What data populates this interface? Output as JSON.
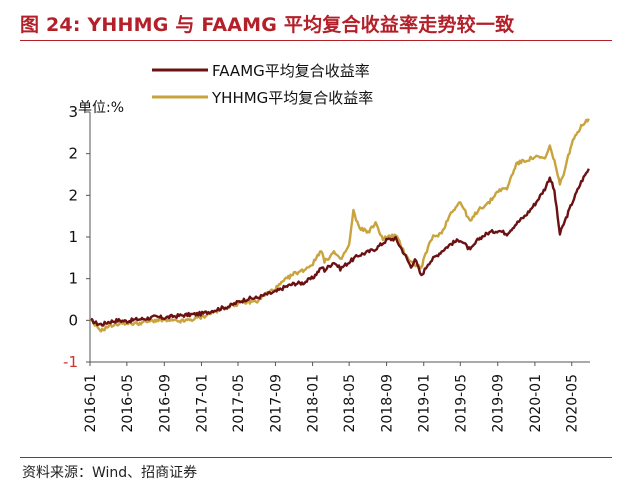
{
  "figure": {
    "title": "图 24: YHHMG 与 FAAMG 平均复合收益率走势较一致",
    "source": "资料来源：Wind、招商证券",
    "unit": "单位:%"
  },
  "colors": {
    "title": "#b4202a",
    "faamg": "#6b1114",
    "yhhmg": "#c9a43e",
    "negative_tick": "#d0312d"
  },
  "chart_data": {
    "type": "line",
    "x_tick_labels": [
      "2016-01",
      "2016-05",
      "2016-09",
      "2017-01",
      "2017-05",
      "2017-09",
      "2018-01",
      "2018-05",
      "2018-09",
      "2019-01",
      "2019-05",
      "2019-09",
      "2020-01",
      "2020-05"
    ],
    "y_tick_labels": [
      "-1",
      "0",
      "1",
      "1",
      "2",
      "2",
      "3"
    ],
    "y_tick_values": [
      -0.5,
      0,
      0.5,
      1,
      1.5,
      2,
      2.5
    ],
    "ylim": [
      -0.5,
      2.5
    ],
    "xlim": [
      "2016-01-01",
      "2020-06-30"
    ],
    "grid": false,
    "legend_position": "top-left",
    "series": [
      {
        "name": "FAAMG平均复合收益率",
        "color": "#6b1114",
        "points": [
          [
            "2016-01-04",
            0.0
          ],
          [
            "2016-01-25",
            -0.04
          ],
          [
            "2016-02-10",
            -0.05
          ],
          [
            "2016-03-01",
            -0.02
          ],
          [
            "2016-04-01",
            0.0
          ],
          [
            "2016-05-02",
            -0.01
          ],
          [
            "2016-06-01",
            0.01
          ],
          [
            "2016-07-01",
            0.02
          ],
          [
            "2016-08-01",
            0.04
          ],
          [
            "2016-09-01",
            0.03
          ],
          [
            "2016-10-03",
            0.05
          ],
          [
            "2016-11-01",
            0.06
          ],
          [
            "2016-12-01",
            0.07
          ],
          [
            "2017-01-03",
            0.08
          ],
          [
            "2017-02-01",
            0.11
          ],
          [
            "2017-03-01",
            0.14
          ],
          [
            "2017-04-03",
            0.17
          ],
          [
            "2017-05-01",
            0.22
          ],
          [
            "2017-06-01",
            0.26
          ],
          [
            "2017-07-03",
            0.27
          ],
          [
            "2017-08-01",
            0.31
          ],
          [
            "2017-09-01",
            0.34
          ],
          [
            "2017-10-02",
            0.4
          ],
          [
            "2017-11-01",
            0.44
          ],
          [
            "2017-12-01",
            0.45
          ],
          [
            "2018-01-02",
            0.51
          ],
          [
            "2018-02-01",
            0.64
          ],
          [
            "2018-02-09",
            0.6
          ],
          [
            "2018-03-12",
            0.7
          ],
          [
            "2018-04-02",
            0.62
          ],
          [
            "2018-05-01",
            0.7
          ],
          [
            "2018-06-01",
            0.78
          ],
          [
            "2018-07-02",
            0.82
          ],
          [
            "2018-07-27",
            0.86
          ],
          [
            "2018-09-04",
            0.97
          ],
          [
            "2018-10-01",
            0.98
          ],
          [
            "2018-10-29",
            0.8
          ],
          [
            "2018-11-20",
            0.64
          ],
          [
            "2018-12-03",
            0.74
          ],
          [
            "2018-12-24",
            0.53
          ],
          [
            "2019-01-15",
            0.68
          ],
          [
            "2019-02-01",
            0.74
          ],
          [
            "2019-03-01",
            0.83
          ],
          [
            "2019-04-01",
            0.92
          ],
          [
            "2019-05-01",
            0.97
          ],
          [
            "2019-06-03",
            0.84
          ],
          [
            "2019-07-01",
            0.98
          ],
          [
            "2019-08-01",
            1.05
          ],
          [
            "2019-09-03",
            1.08
          ],
          [
            "2019-10-01",
            1.04
          ],
          [
            "2019-11-01",
            1.16
          ],
          [
            "2019-12-02",
            1.26
          ],
          [
            "2020-01-02",
            1.4
          ],
          [
            "2020-02-03",
            1.58
          ],
          [
            "2020-02-19",
            1.72
          ],
          [
            "2020-03-05",
            1.55
          ],
          [
            "2020-03-23",
            1.03
          ],
          [
            "2020-04-01",
            1.12
          ],
          [
            "2020-05-01",
            1.4
          ],
          [
            "2020-06-01",
            1.66
          ],
          [
            "2020-06-26",
            1.82
          ]
        ]
      },
      {
        "name": "YHHMG平均复合收益率",
        "color": "#c9a43e",
        "points": [
          [
            "2016-01-04",
            0.0
          ],
          [
            "2016-01-25",
            -0.09
          ],
          [
            "2016-02-10",
            -0.12
          ],
          [
            "2016-03-01",
            -0.07
          ],
          [
            "2016-04-01",
            -0.04
          ],
          [
            "2016-05-02",
            -0.03
          ],
          [
            "2016-06-01",
            -0.04
          ],
          [
            "2016-07-01",
            -0.02
          ],
          [
            "2016-08-01",
            0.0
          ],
          [
            "2016-09-01",
            0.0
          ],
          [
            "2016-10-03",
            -0.01
          ],
          [
            "2016-11-01",
            -0.01
          ],
          [
            "2016-12-01",
            0.01
          ],
          [
            "2017-01-03",
            0.04
          ],
          [
            "2017-02-01",
            0.09
          ],
          [
            "2017-03-01",
            0.12
          ],
          [
            "2017-04-03",
            0.17
          ],
          [
            "2017-05-01",
            0.2
          ],
          [
            "2017-06-01",
            0.22
          ],
          [
            "2017-07-03",
            0.23
          ],
          [
            "2017-08-01",
            0.32
          ],
          [
            "2017-09-01",
            0.38
          ],
          [
            "2017-10-02",
            0.48
          ],
          [
            "2017-11-01",
            0.56
          ],
          [
            "2017-12-01",
            0.6
          ],
          [
            "2018-01-02",
            0.68
          ],
          [
            "2018-01-29",
            0.85
          ],
          [
            "2018-02-09",
            0.7
          ],
          [
            "2018-03-12",
            0.82
          ],
          [
            "2018-04-02",
            0.72
          ],
          [
            "2018-05-01",
            0.9
          ],
          [
            "2018-05-15",
            1.31
          ],
          [
            "2018-06-01",
            1.12
          ],
          [
            "2018-07-02",
            1.06
          ],
          [
            "2018-07-27",
            1.16
          ],
          [
            "2018-08-20",
            0.98
          ],
          [
            "2018-09-04",
            1.0
          ],
          [
            "2018-10-01",
            1.02
          ],
          [
            "2018-10-29",
            0.82
          ],
          [
            "2018-11-20",
            0.7
          ],
          [
            "2018-12-24",
            0.63
          ],
          [
            "2019-01-15",
            0.88
          ],
          [
            "2019-02-01",
            1.0
          ],
          [
            "2019-03-01",
            1.05
          ],
          [
            "2019-04-01",
            1.3
          ],
          [
            "2019-05-01",
            1.42
          ],
          [
            "2019-06-03",
            1.18
          ],
          [
            "2019-07-01",
            1.34
          ],
          [
            "2019-08-01",
            1.4
          ],
          [
            "2019-09-03",
            1.56
          ],
          [
            "2019-10-01",
            1.58
          ],
          [
            "2019-11-01",
            1.88
          ],
          [
            "2019-12-02",
            1.92
          ],
          [
            "2020-01-02",
            1.96
          ],
          [
            "2020-02-03",
            1.94
          ],
          [
            "2020-02-19",
            2.08
          ],
          [
            "2020-03-05",
            1.92
          ],
          [
            "2020-03-23",
            1.62
          ],
          [
            "2020-04-01",
            1.72
          ],
          [
            "2020-05-01",
            2.12
          ],
          [
            "2020-06-01",
            2.34
          ],
          [
            "2020-06-26",
            2.42
          ]
        ]
      }
    ]
  }
}
